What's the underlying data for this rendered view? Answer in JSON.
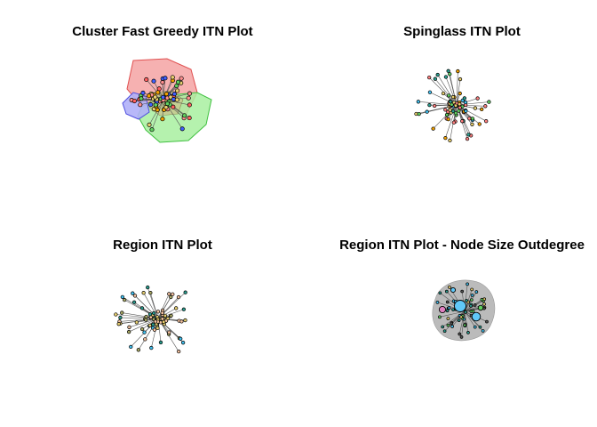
{
  "panels": [
    {
      "id": "fastgreedy",
      "title": "Cluster Fast Greedy ITN Plot"
    },
    {
      "id": "spinglass",
      "title": "Spinglass ITN Plot"
    },
    {
      "id": "region",
      "title": "Region ITN Plot"
    },
    {
      "id": "outdegree",
      "title": "Region ITN Plot - Node Size Outdegree"
    }
  ],
  "colors": {
    "cluster_red": "#f4a3a3",
    "cluster_red_border": "#e05050",
    "cluster_green": "#a8f0a0",
    "cluster_green_border": "#40c040",
    "cluster_blue": "#b0b0f8",
    "cluster_blue_border": "#5050e0",
    "cluster_olive": "#c8c890",
    "edge": "#555555",
    "node_border": "#000000",
    "node_palette": [
      "#ff6060",
      "#f0a000",
      "#40c0f0",
      "#60d060",
      "#e8d070",
      "#2a9d8f",
      "#f4c2a0",
      "#cc66cc"
    ],
    "big_node_blue": "#60c8f8",
    "big_node_pink": "#e080c0",
    "outdegree_cloud": "#bbbbbb"
  }
}
